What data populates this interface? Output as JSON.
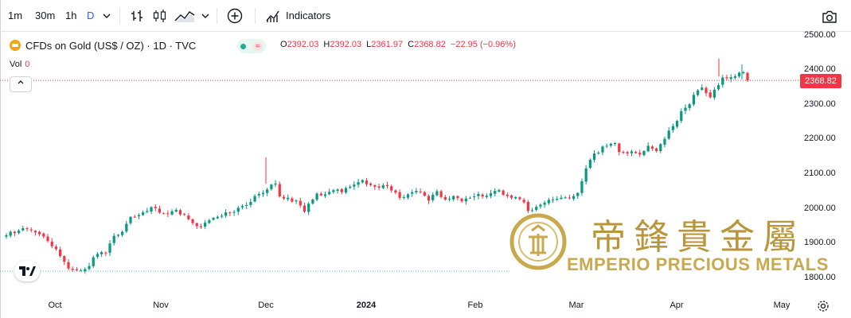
{
  "toolbar": {
    "intervals": [
      "1m",
      "30m",
      "1h",
      "D"
    ],
    "active_interval": "D",
    "indicators_label": "Indicators"
  },
  "legend": {
    "symbol": "CFDs on Gold (US$ / OZ) · 1D · TVC",
    "o_label": "O",
    "o_value": "2392.03",
    "h_label": "H",
    "h_value": "2392.03",
    "l_label": "L",
    "l_value": "2361.97",
    "c_label": "C",
    "c_value": "2368.82",
    "change": "−22.95 (−0.96%)",
    "vol_label": "Vol",
    "vol_value": "0"
  },
  "last_price": "2368.82",
  "watermark": {
    "brand": "EMPERIO PRECIOUS METALS",
    "brand_cn": "帝鋒貴金屬"
  },
  "colors": {
    "up": "#089981",
    "down": "#f23645",
    "accent": "#2962ff",
    "gold": "#c9a94e"
  },
  "chart_data": {
    "type": "candlestick",
    "yticks": [
      "2500.00",
      "2400.00",
      "2300.00",
      "2200.00",
      "2100.00",
      "2000.00",
      "1900.00",
      "1800.00"
    ],
    "ylim": [
      1780,
      2510
    ],
    "xticks": [
      "Oct",
      "Nov",
      "Dec",
      "2024",
      "Feb",
      "Mar",
      "Apr",
      "May"
    ],
    "close_series": [
      1922,
      1932,
      1928,
      1935,
      1942,
      1940,
      1936,
      1930,
      1925,
      1918,
      1905,
      1890,
      1882,
      1862,
      1845,
      1826,
      1822,
      1821,
      1820,
      1824,
      1833,
      1858,
      1868,
      1873,
      1870,
      1898,
      1920,
      1923,
      1932,
      1955,
      1975,
      1975,
      1980,
      1988,
      1992,
      2003,
      2000,
      1987,
      1985,
      1983,
      1991,
      1995,
      1982,
      1981,
      1968,
      1957,
      1948,
      1945,
      1958,
      1965,
      1972,
      1975,
      1978,
      1988,
      1986,
      1989,
      2001,
      2006,
      2009,
      2018,
      2035,
      2041,
      2044,
      2054,
      2068,
      2071,
      2034,
      2028,
      2030,
      2019,
      2022,
      2008,
      1990,
      2013,
      2025,
      2042,
      2037,
      2040,
      2047,
      2052,
      2054,
      2046,
      2058,
      2062,
      2068,
      2075,
      2081,
      2069,
      2067,
      2062,
      2059,
      2066,
      2064,
      2051,
      2045,
      2030,
      2032,
      2040,
      2046,
      2050,
      2047,
      2036,
      2022,
      2039,
      2049,
      2032,
      2025,
      2027,
      2035,
      2029,
      2020,
      2028,
      2030,
      2034,
      2041,
      2034,
      2036,
      2043,
      2050,
      2052,
      2039,
      2035,
      2030,
      2032,
      2026,
      2017,
      1992,
      1994,
      2004,
      2010,
      2016,
      2024,
      2025,
      2027,
      2030,
      2031,
      2029,
      2035,
      2044,
      2078,
      2115,
      2140,
      2158,
      2160,
      2178,
      2180,
      2186,
      2188,
      2162,
      2160,
      2158,
      2164,
      2159,
      2155,
      2165,
      2180,
      2172,
      2165,
      2185,
      2200,
      2224,
      2237,
      2252,
      2280,
      2290,
      2300,
      2327,
      2340,
      2348,
      2332,
      2320,
      2342,
      2355,
      2377,
      2375,
      2378,
      2381,
      2391,
      2392,
      2368.82
    ],
    "last_close": 2368.82,
    "grid": false,
    "legend_position": "top-left"
  }
}
